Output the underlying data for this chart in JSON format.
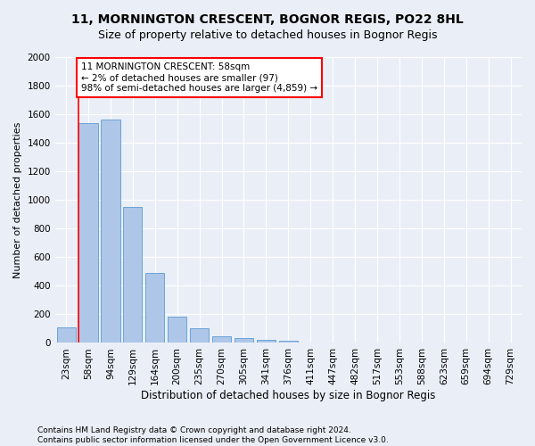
{
  "title": "11, MORNINGTON CRESCENT, BOGNOR REGIS, PO22 8HL",
  "subtitle": "Size of property relative to detached houses in Bognor Regis",
  "xlabel": "Distribution of detached houses by size in Bognor Regis",
  "ylabel": "Number of detached properties",
  "bar_labels": [
    "23sqm",
    "58sqm",
    "94sqm",
    "129sqm",
    "164sqm",
    "200sqm",
    "235sqm",
    "270sqm",
    "305sqm",
    "341sqm",
    "376sqm",
    "411sqm",
    "447sqm",
    "482sqm",
    "517sqm",
    "553sqm",
    "588sqm",
    "623sqm",
    "659sqm",
    "694sqm",
    "729sqm"
  ],
  "bar_values": [
    110,
    1540,
    1565,
    950,
    490,
    185,
    100,
    48,
    35,
    22,
    18,
    0,
    0,
    0,
    0,
    0,
    0,
    0,
    0,
    0,
    0
  ],
  "bar_color": "#aec6e8",
  "bar_edge_color": "#5b9bd5",
  "vline_x": 1,
  "vline_color": "red",
  "annotation_text": "11 MORNINGTON CRESCENT: 58sqm\n← 2% of detached houses are smaller (97)\n98% of semi-detached houses are larger (4,859) →",
  "annotation_box_color": "white",
  "annotation_box_edge": "red",
  "ylim": [
    0,
    2000
  ],
  "yticks": [
    0,
    200,
    400,
    600,
    800,
    1000,
    1200,
    1400,
    1600,
    1800,
    2000
  ],
  "bg_color": "#eaeff7",
  "plot_bg_color": "#eaeff7",
  "footer": "Contains HM Land Registry data © Crown copyright and database right 2024.\nContains public sector information licensed under the Open Government Licence v3.0.",
  "title_fontsize": 10,
  "subtitle_fontsize": 9,
  "xlabel_fontsize": 8.5,
  "ylabel_fontsize": 8,
  "tick_fontsize": 7.5,
  "annotation_fontsize": 7.5,
  "footer_fontsize": 6.5
}
